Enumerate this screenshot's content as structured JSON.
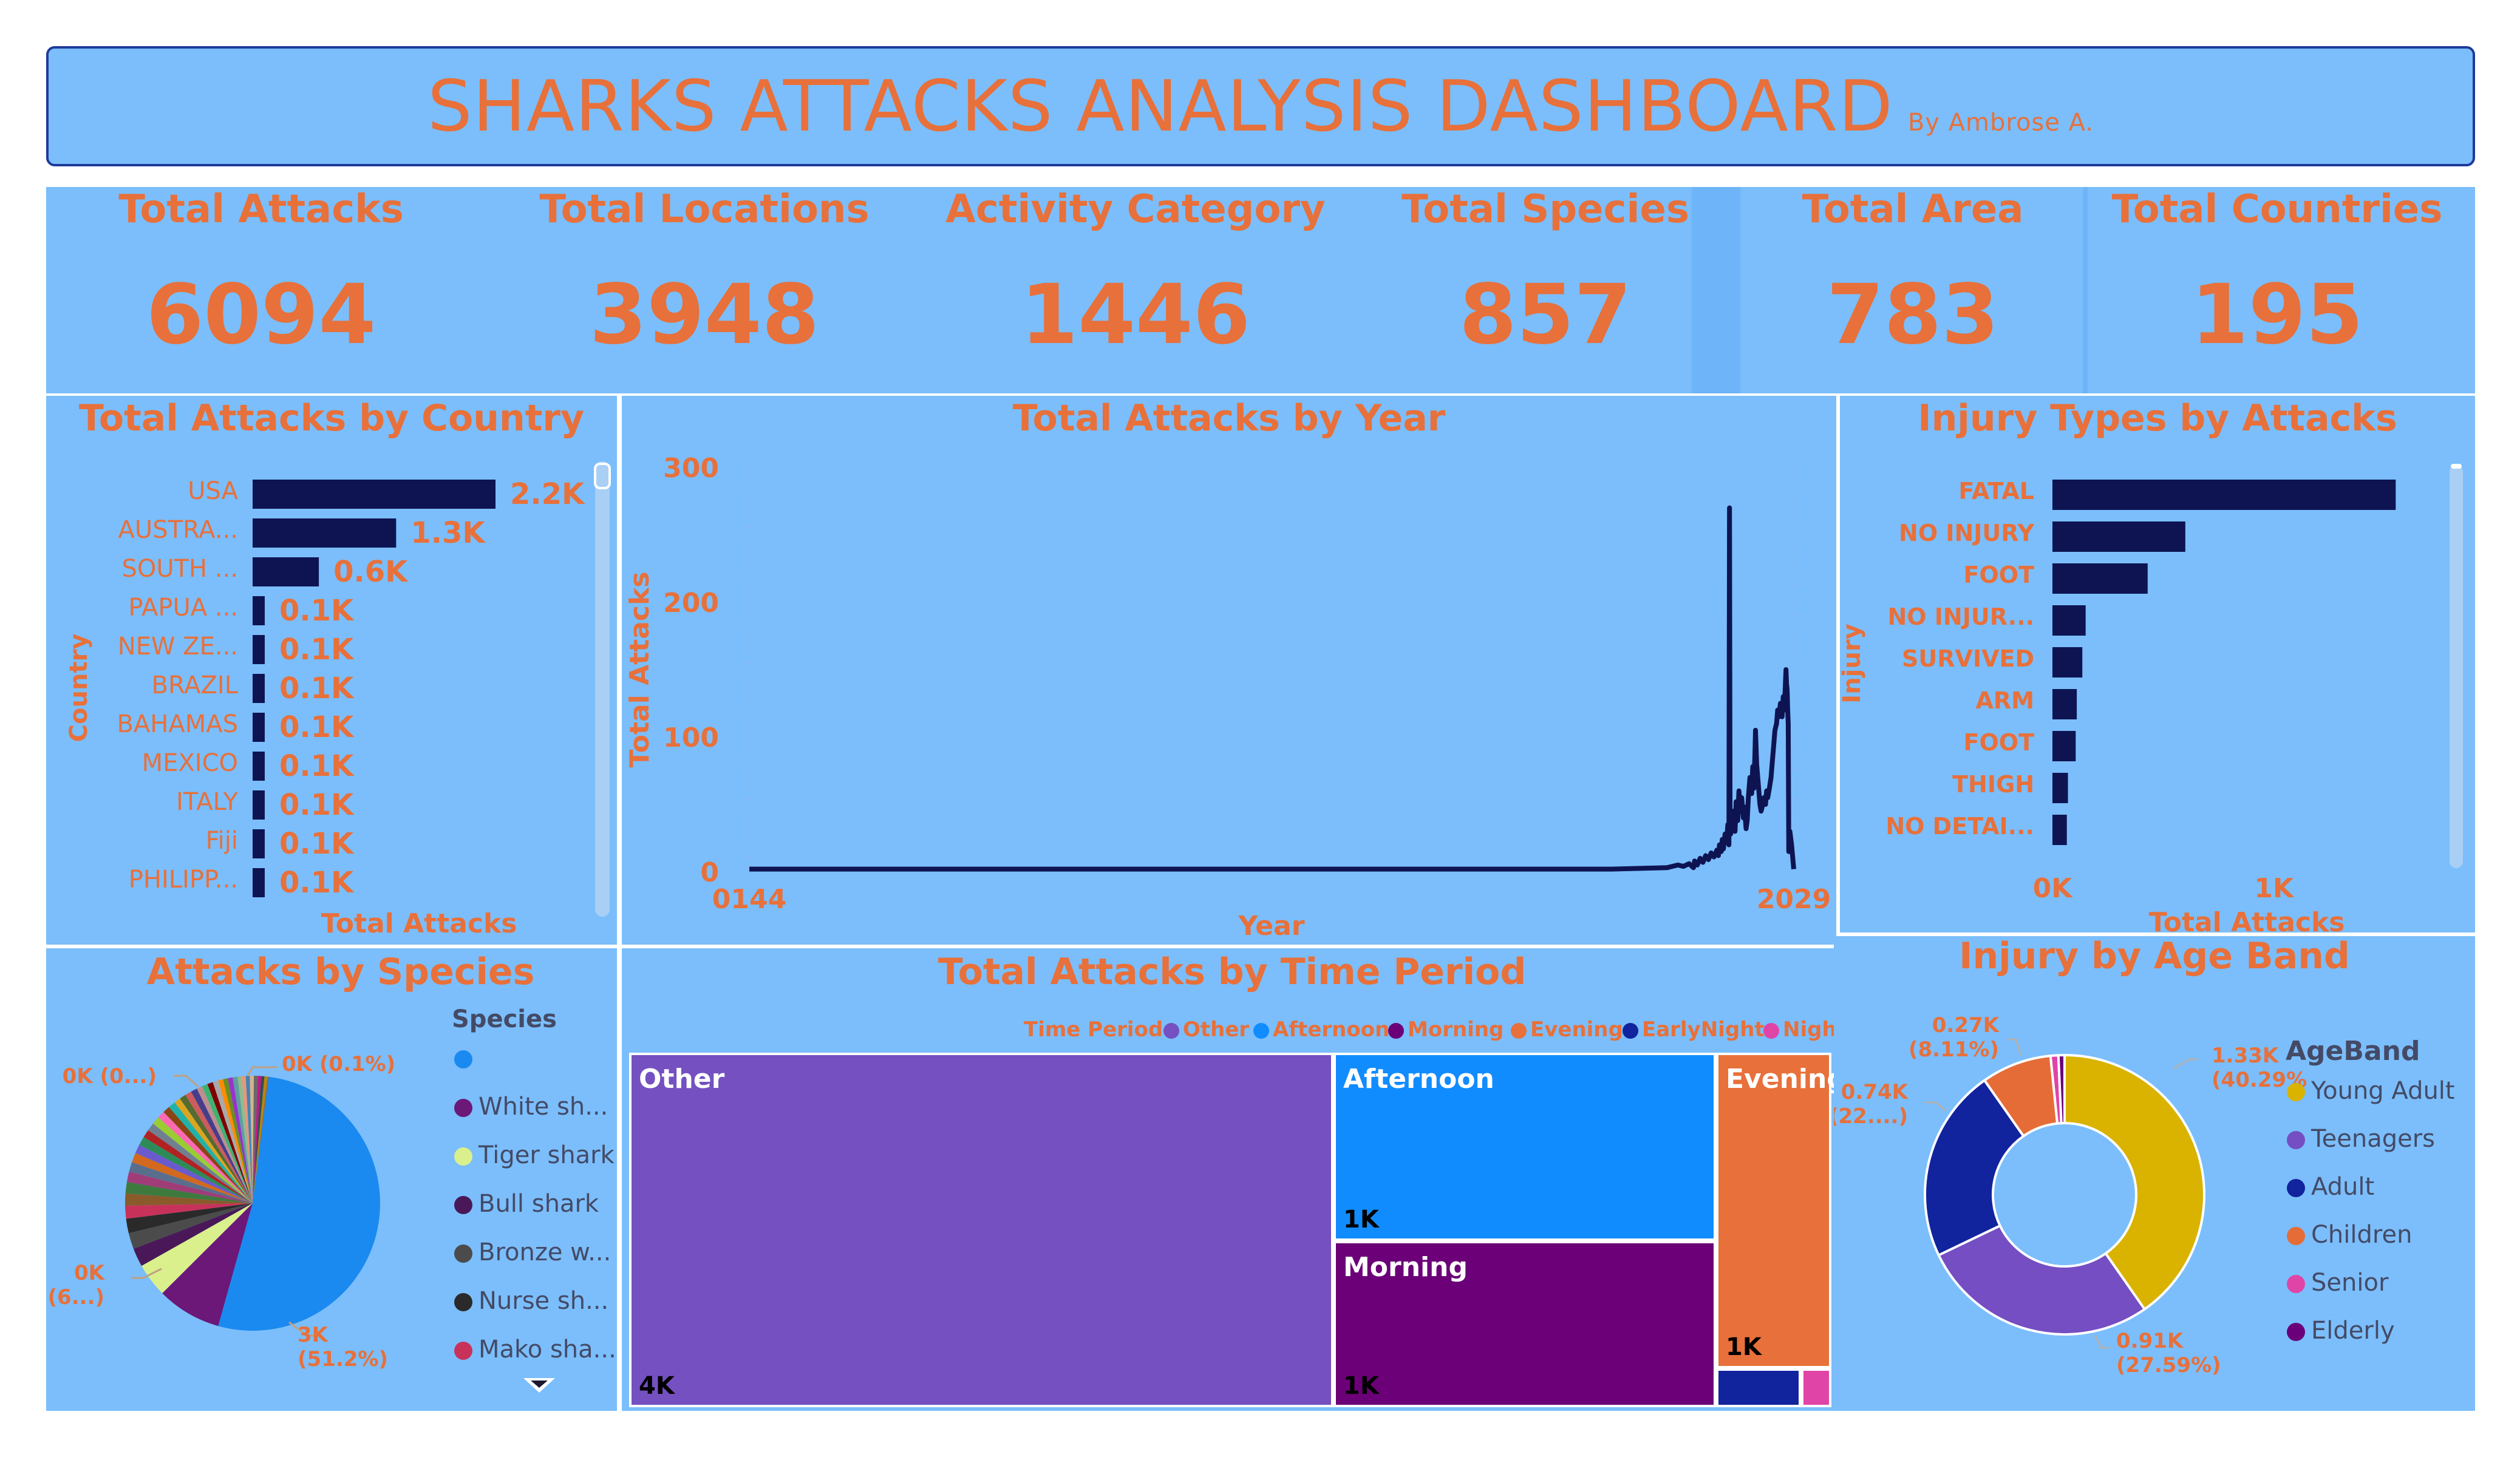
{
  "header": {
    "title": "SHARKS ATTACKS ANALYSIS DASHBOARD",
    "byline": "By Ambrose A."
  },
  "kpis": [
    {
      "label": "Total Attacks",
      "value": "6094"
    },
    {
      "label": "Total Locations",
      "value": "3948"
    },
    {
      "label": "Activity Category",
      "value": "1446"
    },
    {
      "label": "Total Species",
      "value": "857"
    },
    {
      "label": "Total Area",
      "value": "783"
    },
    {
      "label": "Total Countries",
      "value": "195"
    }
  ],
  "colors": {
    "accent": "#E8703A",
    "panel": "#7BBEFB",
    "bar": "#0E1452",
    "border": "#1E3A9A"
  },
  "country_chart": {
    "title": "Total Attacks by Country",
    "ylabel": "Country",
    "xlabel": "Total Attacks",
    "type": "bar",
    "categories": [
      "USA",
      "AUSTRA...",
      "SOUTH ...",
      "PAPUA ...",
      "NEW ZE...",
      "BRAZIL",
      "BAHAMAS",
      "MEXICO",
      "ITALY",
      "Fiji",
      "PHILIPP..."
    ],
    "values": [
      2200,
      1300,
      600,
      100,
      100,
      100,
      100,
      100,
      100,
      100,
      100
    ],
    "data_labels": [
      "2.2K",
      "1.3K",
      "0.6K",
      "0.1K",
      "0.1K",
      "0.1K",
      "0.1K",
      "0.1K",
      "0.1K",
      "0.1K",
      "0.1K"
    ]
  },
  "year_chart": {
    "title": "Total Attacks by Year",
    "type": "line",
    "ylabel": "Total Attacks",
    "xlabel": "Year",
    "x_ticks": [
      "0144",
      "2029"
    ],
    "y_ticks": [
      "300",
      "200",
      "100",
      "0"
    ],
    "ylim": [
      0,
      300
    ],
    "xlim": [
      144,
      2029
    ],
    "points": [
      [
        144,
        2
      ],
      [
        1500,
        2
      ],
      [
        1700,
        2
      ],
      [
        1800,
        3
      ],
      [
        1820,
        5
      ],
      [
        1830,
        4
      ],
      [
        1840,
        6
      ],
      [
        1848,
        3
      ],
      [
        1850,
        8
      ],
      [
        1855,
        5
      ],
      [
        1860,
        10
      ],
      [
        1865,
        7
      ],
      [
        1870,
        12
      ],
      [
        1875,
        9
      ],
      [
        1880,
        14
      ],
      [
        1885,
        11
      ],
      [
        1890,
        16
      ],
      [
        1893,
        12
      ],
      [
        1895,
        20
      ],
      [
        1898,
        15
      ],
      [
        1900,
        24
      ],
      [
        1902,
        17
      ],
      [
        1905,
        28
      ],
      [
        1908,
        22
      ],
      [
        1910,
        35
      ],
      [
        1912,
        20
      ],
      [
        1913,
        270
      ],
      [
        1914,
        40
      ],
      [
        1915,
        28
      ],
      [
        1918,
        32
      ],
      [
        1920,
        45
      ],
      [
        1923,
        30
      ],
      [
        1925,
        52
      ],
      [
        1928,
        38
      ],
      [
        1930,
        60
      ],
      [
        1933,
        45
      ],
      [
        1935,
        55
      ],
      [
        1938,
        40
      ],
      [
        1940,
        48
      ],
      [
        1943,
        32
      ],
      [
        1945,
        38
      ],
      [
        1947,
        55
      ],
      [
        1950,
        70
      ],
      [
        1953,
        58
      ],
      [
        1955,
        78
      ],
      [
        1957,
        62
      ],
      [
        1959,
        88
      ],
      [
        1960,
        105
      ],
      [
        1962,
        80
      ],
      [
        1964,
        70
      ],
      [
        1966,
        60
      ],
      [
        1968,
        50
      ],
      [
        1970,
        45
      ],
      [
        1972,
        48
      ],
      [
        1975,
        55
      ],
      [
        1978,
        50
      ],
      [
        1980,
        60
      ],
      [
        1982,
        55
      ],
      [
        1985,
        62
      ],
      [
        1988,
        70
      ],
      [
        1990,
        80
      ],
      [
        1993,
        95
      ],
      [
        1995,
        105
      ],
      [
        1998,
        110
      ],
      [
        2000,
        120
      ],
      [
        2002,
        115
      ],
      [
        2005,
        125
      ],
      [
        2008,
        115
      ],
      [
        2010,
        130
      ],
      [
        2012,
        120
      ],
      [
        2014,
        140
      ],
      [
        2015,
        150
      ],
      [
        2016,
        140
      ],
      [
        2017,
        135
      ],
      [
        2018,
        120
      ],
      [
        2019,
        110
      ],
      [
        2020,
        15
      ],
      [
        2022,
        30
      ],
      [
        2025,
        20
      ],
      [
        2029,
        2
      ]
    ]
  },
  "injury_chart": {
    "title": "Injury Types by Attacks",
    "ylabel": "Injury",
    "xlabel": "Total Attacks",
    "type": "bar",
    "categories": [
      "FATAL",
      "NO INJURY",
      "FOOT",
      "NO INJUR...",
      "SURVIVED",
      "ARM",
      "FOOT",
      "THIGH",
      "NO DETAI..."
    ],
    "values": [
      1550,
      600,
      430,
      150,
      135,
      110,
      105,
      70,
      65
    ],
    "x_ticks": [
      "0K",
      "1K"
    ],
    "xlim": [
      0,
      1700
    ]
  },
  "species_chart": {
    "title": "Attacks by Species",
    "type": "pie",
    "legend_title": "Species",
    "legend": [
      {
        "name": "",
        "color": "#1A8AF0"
      },
      {
        "name": "White sh...",
        "color": "#6B1878"
      },
      {
        "name": "Tiger shark",
        "color": "#D9F08C"
      },
      {
        "name": "Bull shark",
        "color": "#4A1858"
      },
      {
        "name": "Bronze w...",
        "color": "#4B4B4B"
      },
      {
        "name": "Nurse sh...",
        "color": "#2A2A2A"
      },
      {
        "name": "Mako sha...",
        "color": "#C8325A"
      }
    ],
    "slices": [
      {
        "value": 51.2,
        "color": "#1A8AF0"
      },
      {
        "value": 8.0,
        "color": "#6B1878"
      },
      {
        "value": 4.2,
        "color": "#D9F08C"
      },
      {
        "value": 2.3,
        "color": "#4A1858"
      },
      {
        "value": 2.0,
        "color": "#4B4B4B"
      },
      {
        "value": 1.8,
        "color": "#2A2A2A"
      },
      {
        "value": 1.6,
        "color": "#C8325A"
      },
      {
        "value": 1.5,
        "color": "#8B5A2B"
      },
      {
        "value": 1.4,
        "color": "#3E7A3E"
      },
      {
        "value": 1.3,
        "color": "#A03C78"
      },
      {
        "value": 1.2,
        "color": "#5A6E8C"
      },
      {
        "value": 1.2,
        "color": "#D2691E"
      },
      {
        "value": 1.1,
        "color": "#6A5ACD"
      },
      {
        "value": 1.1,
        "color": "#2E8B57"
      },
      {
        "value": 1.0,
        "color": "#B22222"
      },
      {
        "value": 1.0,
        "color": "#708090"
      },
      {
        "value": 1.0,
        "color": "#9ACD32"
      },
      {
        "value": 0.9,
        "color": "#FF69B4"
      },
      {
        "value": 0.9,
        "color": "#8B4513"
      },
      {
        "value": 0.9,
        "color": "#20B2AA"
      },
      {
        "value": 0.8,
        "color": "#DAA520"
      },
      {
        "value": 0.8,
        "color": "#556B2F"
      },
      {
        "value": 0.8,
        "color": "#CD5C5C"
      },
      {
        "value": 0.8,
        "color": "#483D8B"
      },
      {
        "value": 0.7,
        "color": "#BC8F8F"
      },
      {
        "value": 0.7,
        "color": "#3CB371"
      },
      {
        "value": 0.7,
        "color": "#800000"
      },
      {
        "value": 0.7,
        "color": "#A9A9A9"
      },
      {
        "value": 0.6,
        "color": "#FF8C00"
      },
      {
        "value": 0.6,
        "color": "#6B8E23"
      },
      {
        "value": 0.6,
        "color": "#9932CC"
      },
      {
        "value": 0.6,
        "color": "#5F9EA0"
      },
      {
        "value": 0.5,
        "color": "#8FBC8F"
      },
      {
        "value": 0.5,
        "color": "#E9967A"
      },
      {
        "value": 0.5,
        "color": "#4682B4"
      },
      {
        "value": 0.5,
        "color": "#D2B48C"
      },
      {
        "value": 0.5,
        "color": "#696969"
      },
      {
        "value": 0.4,
        "color": "#C71585"
      },
      {
        "value": 0.4,
        "color": "#2F4F4F"
      },
      {
        "value": 0.4,
        "color": "#B8860B"
      },
      {
        "value": 0.1,
        "color": "#A0522D"
      }
    ],
    "labels": [
      {
        "text": "3K",
        "text2": "(51.2%)"
      },
      {
        "text": "0K",
        "text2": "(6...)"
      },
      {
        "text": "0K (0...)",
        "text2": ""
      },
      {
        "text": "0K (0.1%)",
        "text2": ""
      }
    ]
  },
  "time_chart": {
    "title": "Total Attacks by Time Period",
    "legend_title": "Time Period",
    "legend": [
      {
        "name": "Other",
        "color": "#7450C0"
      },
      {
        "name": "Afternoon",
        "color": "#118CFF"
      },
      {
        "name": "Morning",
        "color": "#6B0078"
      },
      {
        "name": "Evening",
        "color": "#E8703A"
      },
      {
        "name": "EarlyNight",
        "color": "#12239E"
      },
      {
        "name": "Night",
        "color": "#E044A7"
      }
    ],
    "tiles": [
      {
        "name": "Other",
        "value": "4K",
        "color": "#7450C0"
      },
      {
        "name": "Afternoon",
        "value": "1K",
        "color": "#118CFF"
      },
      {
        "name": "Morning",
        "value": "1K",
        "color": "#6B0078"
      },
      {
        "name": "Evening",
        "value": "1K",
        "color": "#E8703A"
      },
      {
        "name": "",
        "value": "",
        "color": "#12239E"
      },
      {
        "name": "",
        "value": "",
        "color": "#E044A7"
      }
    ]
  },
  "age_chart": {
    "title": "Injury by Age Band",
    "type": "pie",
    "legend_title": "AgeBand",
    "legend": [
      {
        "name": "Young Adult",
        "color": "#D9B300"
      },
      {
        "name": "Teenagers",
        "color": "#744EC2"
      },
      {
        "name": "Adult",
        "color": "#12239E"
      },
      {
        "name": "Children",
        "color": "#E66C37"
      },
      {
        "name": "Senior",
        "color": "#E044A7"
      },
      {
        "name": "Elderly",
        "color": "#6B007B"
      }
    ],
    "slices": [
      {
        "name": "Young Adult",
        "value": 40.29,
        "color": "#D9B300"
      },
      {
        "name": "Teenagers",
        "value": 27.59,
        "color": "#744EC2"
      },
      {
        "name": "Adult",
        "value": 22.4,
        "color": "#12239E"
      },
      {
        "name": "Children",
        "value": 8.11,
        "color": "#E66C37"
      },
      {
        "name": "Senior",
        "value": 0.9,
        "color": "#E044A7"
      },
      {
        "name": "Elderly",
        "value": 0.71,
        "color": "#6B007B"
      }
    ],
    "labels": [
      {
        "text": "1.33K",
        "text2": "(40.29%)"
      },
      {
        "text": "0.91K",
        "text2": "(27.59%)"
      },
      {
        "text": "0.74K",
        "text2": "(22....)"
      },
      {
        "text": "0.27K",
        "text2": "(8.11%)"
      }
    ]
  }
}
